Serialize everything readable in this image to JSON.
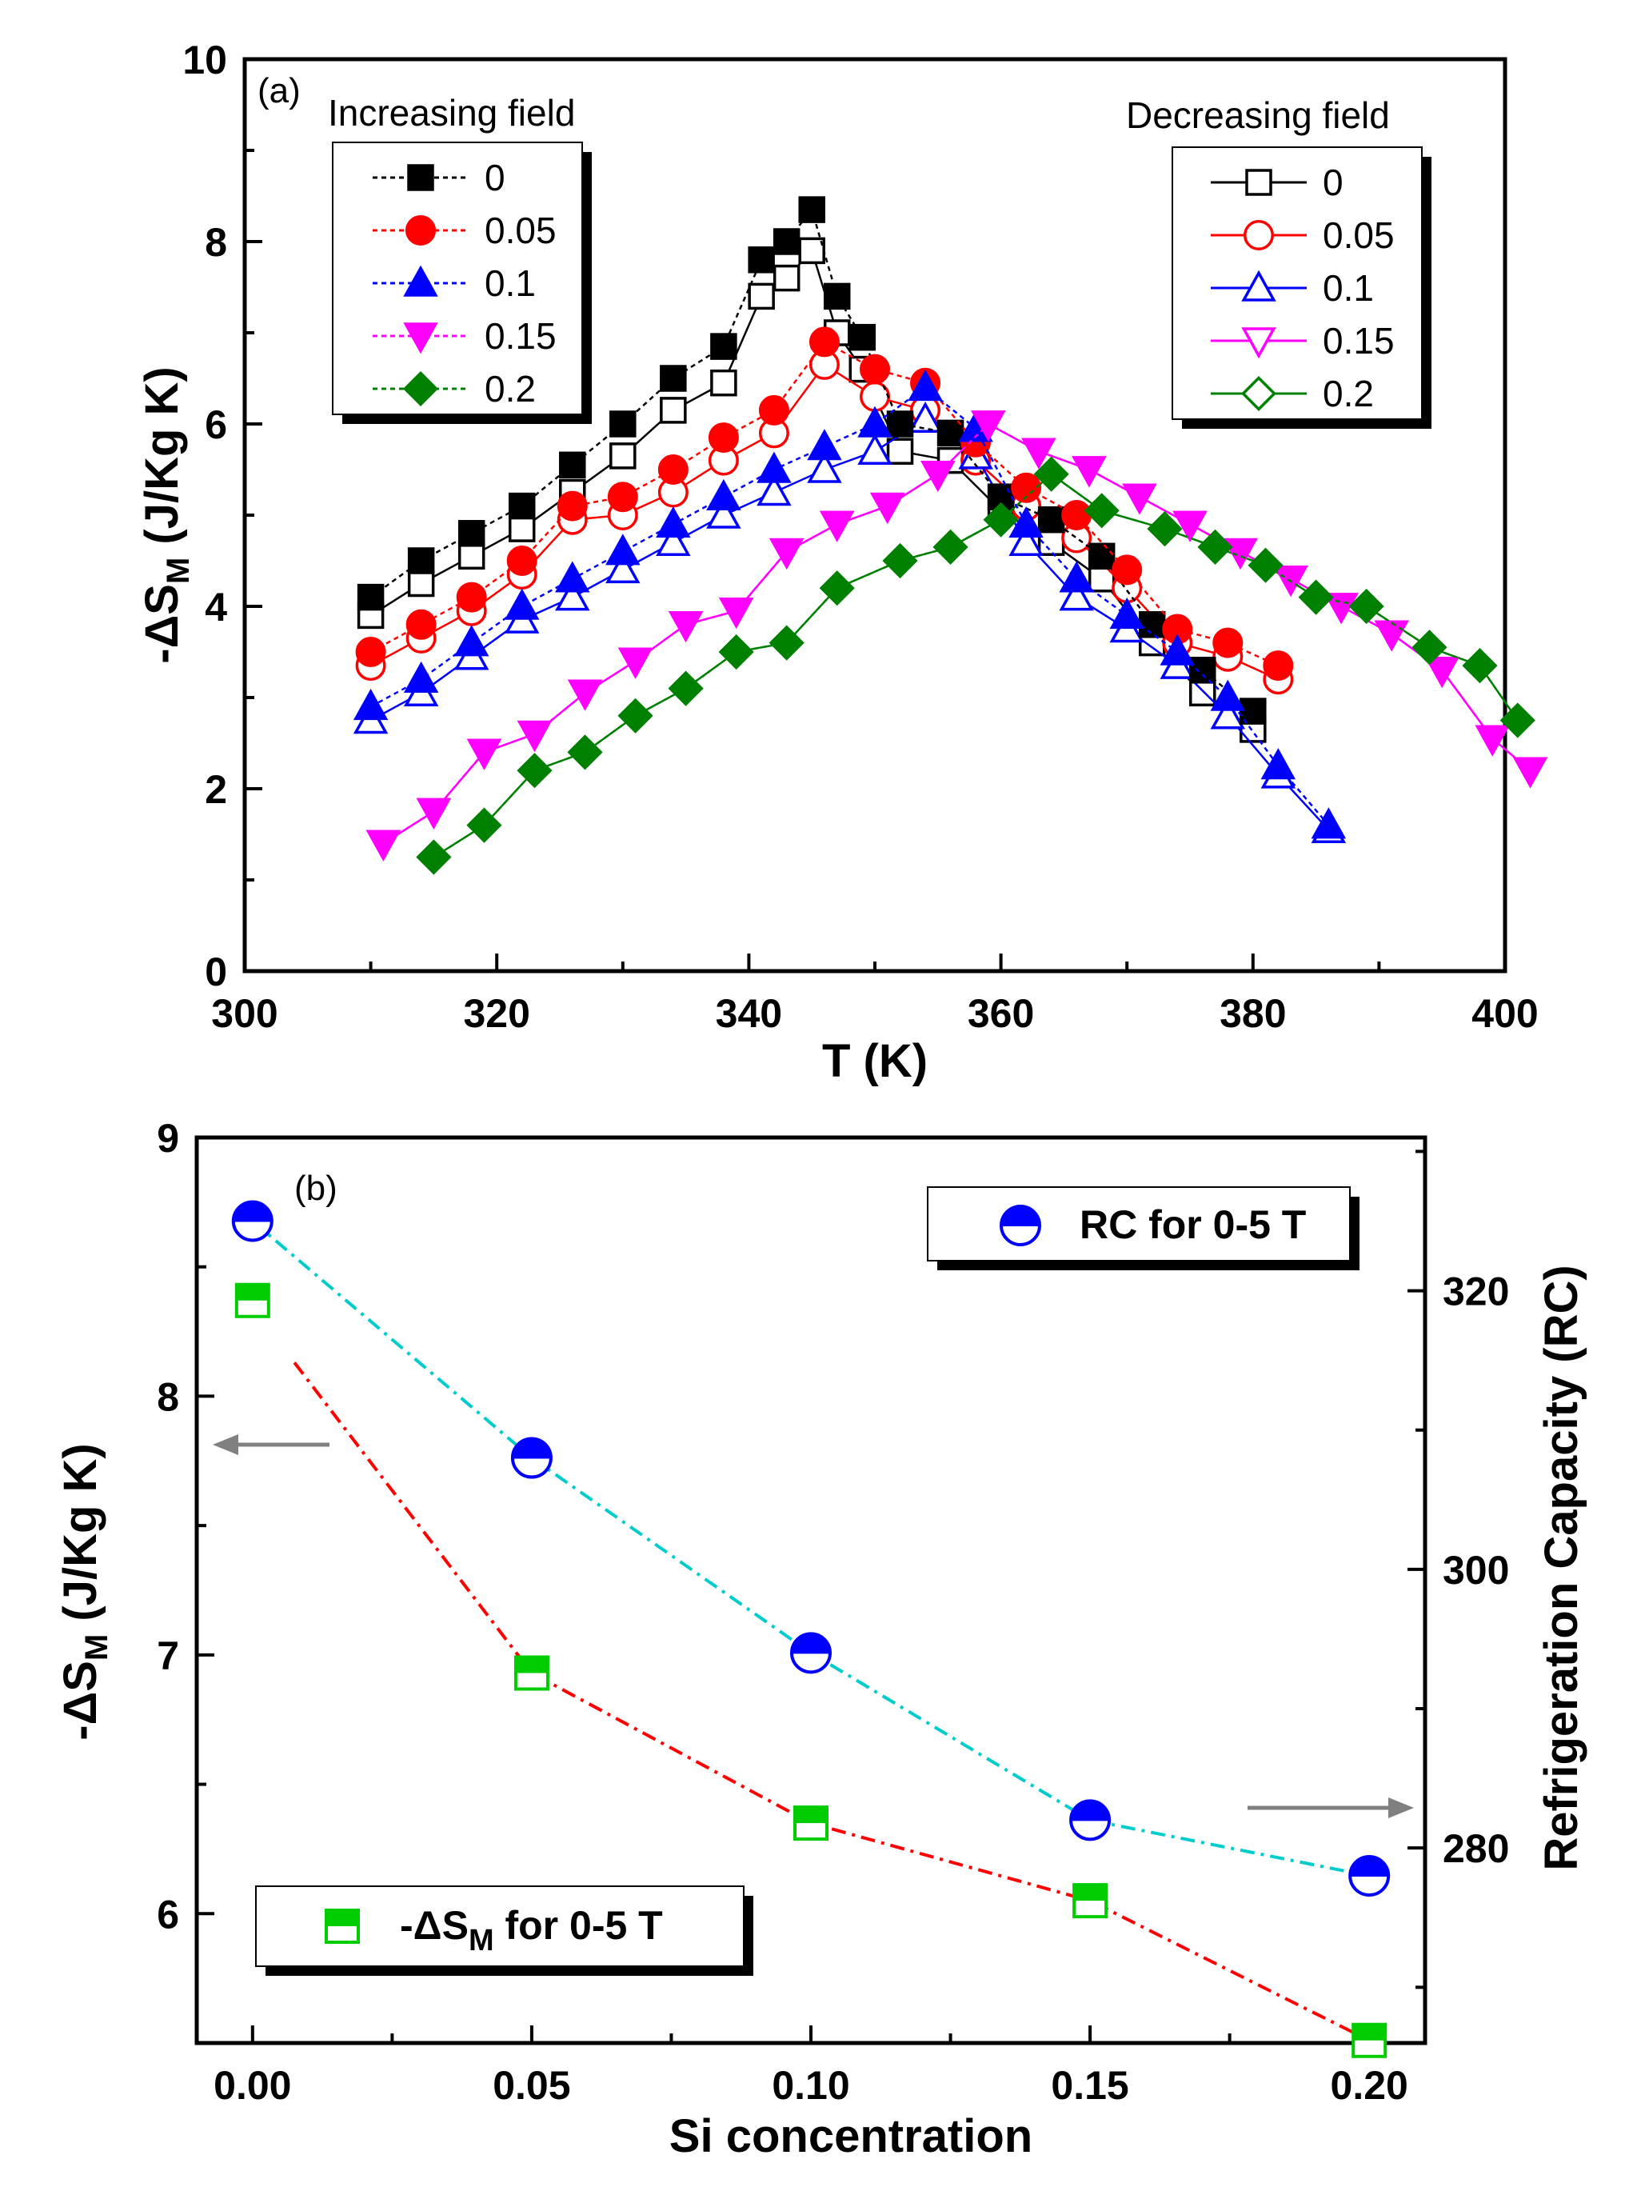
{
  "panel_a": {
    "label": "(a)",
    "xlabel": "T (K)",
    "ylabel": "-ΔS",
    "ylabel_sub": "M",
    "ylabel_unit": " (J/Kg K)",
    "legend_increasing_title": "Increasing field",
    "legend_decreasing_title": "Decreasing field",
    "x_ticks": [
      "300",
      "320",
      "340",
      "360",
      "380",
      "400"
    ],
    "y_ticks": [
      "0",
      "2",
      "4",
      "6",
      "8",
      "10"
    ]
  },
  "panel_b": {
    "label": "(b)",
    "xlabel": "Si concentration",
    "ylabel_left": "-ΔS",
    "ylabel_left_sub": "M",
    "ylabel_left_unit": " (J/Kg K)",
    "ylabel_right": "Refrigeration Capacity (RC)",
    "legend_rc": "RC for 0-5 T",
    "legend_ds_pre": "-ΔS",
    "legend_ds_sub": "M",
    "legend_ds_post": "  for 0-5 T",
    "x_ticks": [
      "0.00",
      "0.05",
      "0.10",
      "0.15",
      "0.20"
    ],
    "y_left_ticks": [
      "6",
      "7",
      "8",
      "9"
    ],
    "y_right_ticks": [
      "280",
      "300",
      "320"
    ]
  },
  "colors": {
    "s0": "#000000",
    "s005": "#ff0000",
    "s01": "#0000ff",
    "s015": "#ff00ff",
    "s02": "#008000",
    "rc_marker": "#0000ff",
    "rc_line": "#00cccc",
    "ds_marker": "#00cc00",
    "ds_line": "#ff0000",
    "arrow": "#808080"
  },
  "chart_data": [
    {
      "type": "line",
      "xlim": [
        300,
        400
      ],
      "ylim": [
        0,
        10
      ],
      "series": [
        {
          "name": "0",
          "group": "Increasing field",
          "marker": "square",
          "filled": true,
          "x": [
            310,
            314,
            318,
            322,
            326,
            330,
            334,
            338,
            341,
            343,
            345,
            347,
            349,
            352,
            356,
            360,
            364,
            368,
            372,
            376,
            380
          ],
          "y": [
            4.1,
            4.5,
            4.8,
            5.1,
            5.55,
            6.0,
            6.5,
            6.85,
            7.8,
            8.0,
            8.35,
            7.4,
            6.95,
            6.0,
            5.9,
            5.2,
            4.95,
            4.55,
            3.8,
            3.3,
            2.85
          ]
        },
        {
          "name": "0.05",
          "group": "Increasing field",
          "marker": "circle",
          "filled": true,
          "x": [
            310,
            314,
            318,
            322,
            326,
            330,
            334,
            338,
            342,
            346,
            350,
            354,
            358,
            362,
            366,
            370,
            374,
            378,
            382
          ],
          "y": [
            3.5,
            3.8,
            4.1,
            4.5,
            5.1,
            5.2,
            5.5,
            5.85,
            6.15,
            6.9,
            6.6,
            6.45,
            5.8,
            5.3,
            5.0,
            4.4,
            3.75,
            3.6,
            3.35
          ]
        },
        {
          "name": "0.1",
          "group": "Increasing field",
          "marker": "triangle-up",
          "filled": true,
          "x": [
            310,
            314,
            318,
            322,
            326,
            330,
            334,
            338,
            342,
            346,
            350,
            354,
            358,
            362,
            366,
            370,
            374,
            378,
            382,
            386
          ],
          "y": [
            2.9,
            3.2,
            3.6,
            4.0,
            4.3,
            4.6,
            4.9,
            5.2,
            5.5,
            5.75,
            6.0,
            6.4,
            5.95,
            4.9,
            4.3,
            3.9,
            3.5,
            3.0,
            2.25,
            1.6
          ]
        },
        {
          "name": "0.15",
          "group": "Increasing field",
          "marker": "triangle-down",
          "filled": true,
          "x": [
            311,
            315,
            319,
            323,
            327,
            331,
            335,
            339,
            343,
            347,
            351,
            355,
            359,
            363,
            367,
            371,
            375,
            379,
            383,
            387,
            391,
            395,
            399,
            402
          ],
          "y": [
            1.4,
            1.75,
            2.4,
            2.6,
            3.05,
            3.4,
            3.8,
            3.95,
            4.6,
            4.9,
            5.1,
            5.45,
            6.0,
            5.7,
            5.5,
            5.2,
            4.9,
            4.6,
            4.3,
            4.0,
            3.7,
            3.3,
            2.55,
            2.2
          ]
        },
        {
          "name": "0.2",
          "group": "Increasing field",
          "marker": "diamond",
          "filled": true,
          "x": [
            315,
            319,
            323,
            327,
            331,
            335,
            339,
            343,
            347,
            352,
            356,
            360,
            364,
            368,
            373,
            377,
            381,
            385,
            389,
            394,
            398,
            401
          ],
          "y": [
            1.25,
            1.6,
            2.2,
            2.4,
            2.8,
            3.1,
            3.5,
            3.6,
            4.2,
            4.5,
            4.65,
            4.95,
            5.45,
            5.05,
            4.85,
            4.65,
            4.45,
            4.1,
            4.0,
            3.55,
            3.35,
            2.75
          ]
        },
        {
          "name": "0",
          "group": "Decreasing field",
          "marker": "square",
          "filled": false,
          "x": [
            310,
            314,
            318,
            322,
            326,
            330,
            334,
            338,
            341,
            343,
            345,
            347,
            349,
            352,
            356,
            360,
            364,
            368,
            372,
            376,
            380
          ],
          "y": [
            3.9,
            4.25,
            4.55,
            4.85,
            5.25,
            5.65,
            6.15,
            6.45,
            7.4,
            7.6,
            7.9,
            7.0,
            6.6,
            5.7,
            5.6,
            5.05,
            4.7,
            4.3,
            3.6,
            3.05,
            2.65
          ]
        },
        {
          "name": "0.05",
          "group": "Decreasing field",
          "marker": "circle",
          "filled": false,
          "x": [
            310,
            314,
            318,
            322,
            326,
            330,
            334,
            338,
            342,
            346,
            350,
            354,
            358,
            362,
            366,
            370,
            374,
            378,
            382
          ],
          "y": [
            3.35,
            3.65,
            3.95,
            4.35,
            4.95,
            5.0,
            5.25,
            5.6,
            5.9,
            6.65,
            6.3,
            6.15,
            5.6,
            5.1,
            4.75,
            4.2,
            3.6,
            3.45,
            3.2
          ]
        },
        {
          "name": "0.1",
          "group": "Decreasing field",
          "marker": "triangle-up",
          "filled": false,
          "x": [
            310,
            314,
            318,
            322,
            326,
            330,
            334,
            338,
            342,
            346,
            350,
            354,
            358,
            362,
            366,
            370,
            374,
            378,
            382,
            386
          ],
          "y": [
            2.75,
            3.05,
            3.45,
            3.85,
            4.1,
            4.4,
            4.7,
            5.0,
            5.25,
            5.5,
            5.7,
            6.05,
            5.65,
            4.7,
            4.1,
            3.75,
            3.35,
            2.8,
            2.15,
            1.55
          ]
        },
        {
          "name": "0.15",
          "group": "Decreasing field",
          "marker": "triangle-down",
          "filled": false,
          "x": [
            311,
            315,
            319,
            323,
            327,
            331,
            335,
            339,
            343,
            347,
            351,
            355,
            359,
            363,
            367,
            371,
            375,
            379,
            383,
            387,
            391,
            395,
            399,
            402
          ],
          "y": [
            1.4,
            1.75,
            2.4,
            2.6,
            3.05,
            3.4,
            3.8,
            3.95,
            4.6,
            4.9,
            5.1,
            5.45,
            6.0,
            5.7,
            5.5,
            5.2,
            4.9,
            4.6,
            4.3,
            4.0,
            3.7,
            3.3,
            2.55,
            2.2
          ]
        },
        {
          "name": "0.2",
          "group": "Decreasing field",
          "marker": "diamond",
          "filled": false,
          "x": [
            315,
            319,
            323,
            327,
            331,
            335,
            339,
            343,
            347,
            352,
            356,
            360,
            364,
            368,
            373,
            377,
            381,
            385,
            389,
            394,
            398,
            401
          ],
          "y": [
            1.25,
            1.6,
            2.2,
            2.4,
            2.8,
            3.1,
            3.5,
            3.6,
            4.2,
            4.5,
            4.65,
            4.95,
            5.45,
            5.05,
            4.85,
            4.65,
            4.45,
            4.1,
            4.0,
            3.55,
            3.35,
            2.75
          ]
        }
      ]
    },
    {
      "type": "line",
      "xlim": [
        -0.01,
        0.21
      ],
      "ylim": [
        5.5,
        9.0
      ],
      "y2lim": [
        266,
        331
      ],
      "series": [
        {
          "name": "RC for 0-5 T",
          "axis": "right",
          "marker": "half-circle",
          "x": [
            0.0,
            0.05,
            0.1,
            0.15,
            0.2
          ],
          "y": [
            325,
            308,
            294,
            282,
            278
          ]
        },
        {
          "name": "-ΔSM  for 0-5 T",
          "axis": "left",
          "marker": "half-square",
          "x": [
            0.0,
            0.05,
            0.1,
            0.15,
            0.2
          ],
          "y": [
            8.37,
            6.93,
            6.35,
            6.05,
            5.51
          ]
        }
      ]
    }
  ]
}
